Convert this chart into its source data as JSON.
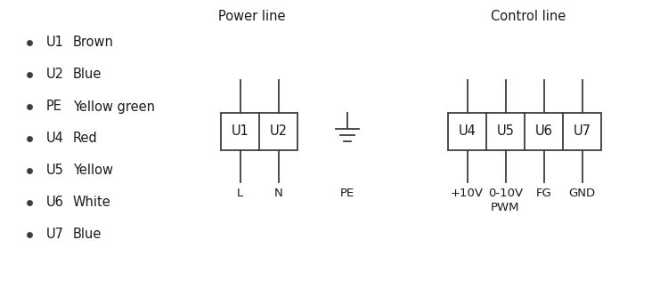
{
  "bg_color": "#ffffff",
  "text_color": "#1a1a1a",
  "line_color": "#3d3d3d",
  "legend_items": [
    {
      "label": "U1",
      "color_name": "Brown"
    },
    {
      "label": "U2",
      "color_name": "Blue"
    },
    {
      "label": "PE",
      "color_name": "Yellow green"
    },
    {
      "label": "U4",
      "color_name": "Red"
    },
    {
      "label": "U5",
      "color_name": "Yellow"
    },
    {
      "label": "U6",
      "color_name": "White"
    },
    {
      "label": "U7",
      "color_name": "Blue"
    }
  ],
  "power_line_title": "Power line",
  "control_line_title": "Control line",
  "power_terminals": [
    "U1",
    "U2"
  ],
  "power_labels": [
    "L",
    "N"
  ],
  "control_terminals": [
    "U4",
    "U5",
    "U6",
    "U7"
  ],
  "control_labels": [
    "+10V",
    "0-10V\nPWM",
    "FG",
    "GND"
  ],
  "pe_label": "PE",
  "font_size_title": 10.5,
  "font_size_label": 9.5,
  "font_size_terminal": 10.5,
  "font_size_legend_key": 10.5,
  "font_size_legend_name": 10.5
}
